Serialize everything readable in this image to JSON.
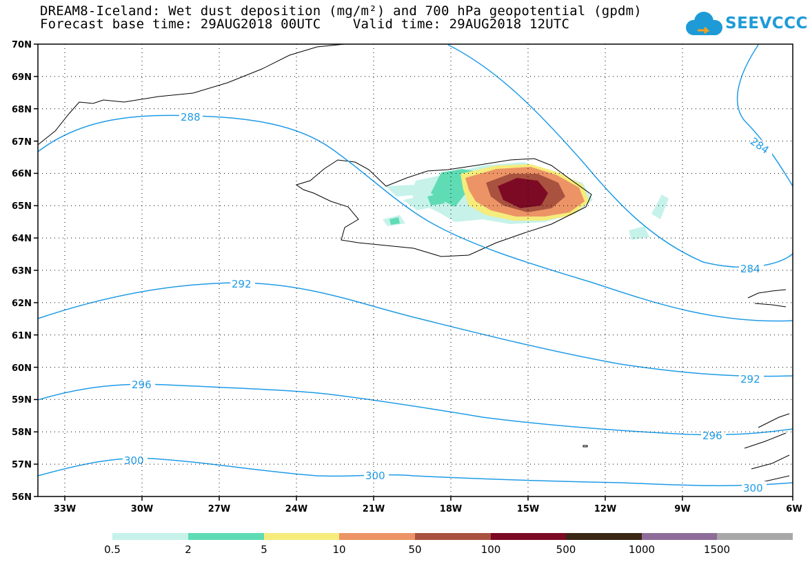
{
  "header": {
    "title_line1": "DREAM8-Iceland: Wet dust deposition (mg/m²) and 700 hPa geopotential (gpdm)",
    "title_line2": "Forecast base time: 29AUG2018 00UTC    Valid time: 29AUG2018 12UTC",
    "logo_text": "SEEVCCC",
    "logo_icon": "cloud-icon",
    "logo_color": "#1e9bd7"
  },
  "map": {
    "lat_labels": [
      "70N",
      "69N",
      "68N",
      "67N",
      "66N",
      "65N",
      "64N",
      "63N",
      "62N",
      "61N",
      "60N",
      "59N",
      "58N",
      "57N",
      "56N"
    ],
    "lon_labels": [
      "33W",
      "30W",
      "27W",
      "24W",
      "21W",
      "18W",
      "15W",
      "12W",
      "9W",
      "6W"
    ],
    "contour_color": "#1e9be6",
    "contour_labels": [
      "288",
      "284",
      "284",
      "292",
      "292",
      "296",
      "296",
      "300",
      "300",
      "300"
    ]
  },
  "colorbar": {
    "ticks": [
      "0.5",
      "2",
      "5",
      "10",
      "50",
      "100",
      "500",
      "1000",
      "1500"
    ],
    "colors": [
      "#c6f2ea",
      "#5fdcb4",
      "#f5ec7c",
      "#ec9466",
      "#a9523f",
      "#7d0a25",
      "#3a2614",
      "#8e6c99",
      "#a8a8a8"
    ]
  }
}
